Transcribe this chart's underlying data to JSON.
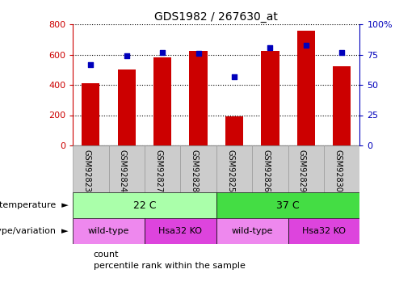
{
  "title": "GDS1982 / 267630_at",
  "samples": [
    "GSM92823",
    "GSM92824",
    "GSM92827",
    "GSM92828",
    "GSM92825",
    "GSM92826",
    "GSM92829",
    "GSM92830"
  ],
  "counts": [
    410,
    500,
    580,
    625,
    190,
    625,
    760,
    525
  ],
  "percentiles": [
    67,
    74,
    77,
    76,
    57,
    81,
    83,
    77
  ],
  "bar_color": "#cc0000",
  "dot_color": "#0000bb",
  "ylim_left": [
    0,
    800
  ],
  "ylim_right": [
    0,
    100
  ],
  "yticks_left": [
    0,
    200,
    400,
    600,
    800
  ],
  "ytick_labels_left": [
    "0",
    "200",
    "400",
    "600",
    "800"
  ],
  "yticks_right": [
    0,
    25,
    50,
    75,
    100
  ],
  "ytick_labels_right": [
    "0",
    "25",
    "50",
    "75",
    "100%"
  ],
  "temperature_labels": [
    {
      "label": "22 C",
      "start": 0,
      "end": 4,
      "color": "#aaffaa"
    },
    {
      "label": "37 C",
      "start": 4,
      "end": 8,
      "color": "#44dd44"
    }
  ],
  "genotype_labels": [
    {
      "label": "wild-type",
      "start": 0,
      "end": 2,
      "color": "#ee88ee"
    },
    {
      "label": "Hsa32 KO",
      "start": 2,
      "end": 4,
      "color": "#dd44dd"
    },
    {
      "label": "wild-type",
      "start": 4,
      "end": 6,
      "color": "#ee88ee"
    },
    {
      "label": "Hsa32 KO",
      "start": 6,
      "end": 8,
      "color": "#dd44dd"
    }
  ],
  "legend_count_label": "count",
  "legend_pct_label": "percentile rank within the sample",
  "row_label_temperature": "temperature",
  "row_label_genotype": "genotype/variation",
  "left_axis_color": "#cc0000",
  "right_axis_color": "#0000bb",
  "xlabel_bg_color": "#cccccc",
  "xlabel_border_color": "#999999"
}
